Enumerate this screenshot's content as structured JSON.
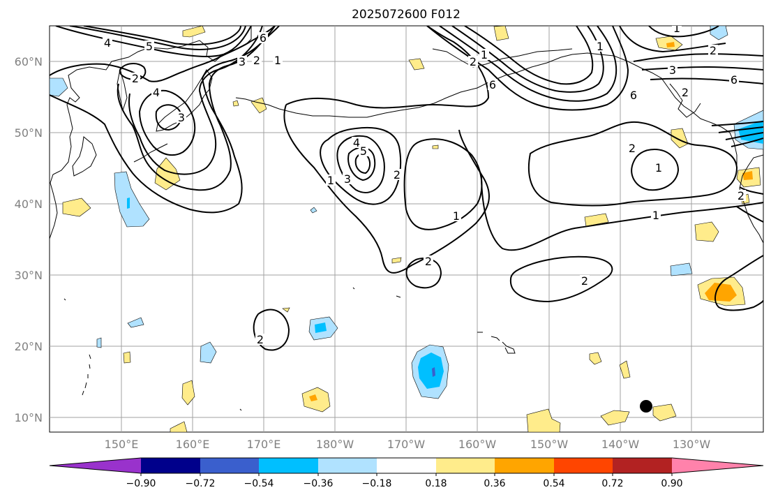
{
  "title": "2025072600 F012",
  "lat_labels": [
    "60°N",
    "50°N",
    "40°N",
    "30°N",
    "20°N",
    "10°N"
  ],
  "lon_labels": [
    "150°E",
    "160°E",
    "170°E",
    "180°W",
    "170°W",
    "160°W",
    "150°W",
    "140°W",
    "130°W"
  ],
  "colorbar": {
    "colors": [
      "#9932cc",
      "#00008b",
      "#3a5fcd",
      "#00bfff",
      "#b0e2ff",
      "#ffffff",
      "#ffec8b",
      "#ffa500",
      "#ff4500",
      "#b22222",
      "#ff82ab"
    ],
    "tick_labels": [
      "−0.90",
      "−0.72",
      "−0.54",
      "−0.36",
      "−0.18",
      "0.18",
      "0.36",
      "0.54",
      "0.72",
      "0.90"
    ]
  },
  "contour_labels": [
    "4",
    "5",
    "2",
    "4",
    "3",
    "6",
    "3",
    "2",
    "1",
    "4",
    "5",
    "3",
    "2",
    "1",
    "1",
    "2",
    "2",
    "1",
    "6",
    "6",
    "1",
    "2",
    "2",
    "1",
    "2",
    "1",
    "6",
    "2",
    "3",
    "2",
    "1",
    "1",
    "2"
  ],
  "marker": "storm-position-dot"
}
